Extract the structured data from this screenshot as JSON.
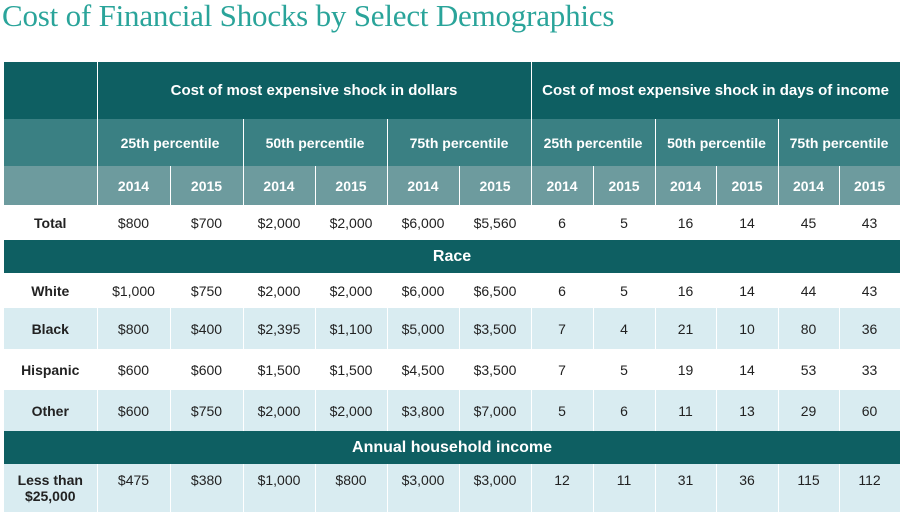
{
  "title": "Cost of Financial Shocks by Select Demographics",
  "chart_data": {
    "type": "table",
    "group_headers": [
      "Cost of most expensive shock in dollars",
      "Cost of most expensive shock in days of income"
    ],
    "percentiles": [
      "25th percentile",
      "50th percentile",
      "75th percentile",
      "25th percentile",
      "50th percentile",
      "75th percentile"
    ],
    "years": [
      "2014",
      "2015",
      "2014",
      "2015",
      "2014",
      "2015",
      "2014",
      "2015",
      "2014",
      "2015",
      "2014",
      "2015"
    ],
    "rows": [
      {
        "type": "data",
        "label": "Total",
        "values": [
          "$800",
          "$700",
          "$2,000",
          "$2,000",
          "$6,000",
          "$5,560",
          "6",
          "5",
          "16",
          "14",
          "45",
          "43"
        ]
      },
      {
        "type": "section",
        "label": "Race"
      },
      {
        "type": "data",
        "label": "White",
        "values": [
          "$1,000",
          "$750",
          "$2,000",
          "$2,000",
          "$6,000",
          "$6,500",
          "6",
          "5",
          "16",
          "14",
          "44",
          "43"
        ]
      },
      {
        "type": "data",
        "label": "Black",
        "values": [
          "$800",
          "$400",
          "$2,395",
          "$1,100",
          "$5,000",
          "$3,500",
          "7",
          "4",
          "21",
          "10",
          "80",
          "36"
        ]
      },
      {
        "type": "data",
        "label": "Hispanic",
        "values": [
          "$600",
          "$600",
          "$1,500",
          "$1,500",
          "$4,500",
          "$3,500",
          "7",
          "5",
          "19",
          "14",
          "53",
          "33"
        ]
      },
      {
        "type": "data",
        "label": "Other",
        "values": [
          "$600",
          "$750",
          "$2,000",
          "$2,000",
          "$3,800",
          "$7,000",
          "5",
          "6",
          "11",
          "13",
          "29",
          "60"
        ]
      },
      {
        "type": "section",
        "label": "Annual household income"
      },
      {
        "type": "data",
        "label": "Less than $25,000",
        "values": [
          "$475",
          "$380",
          "$1,000",
          "$800",
          "$3,000",
          "$3,000",
          "12",
          "11",
          "31",
          "36",
          "115",
          "112"
        ]
      }
    ]
  },
  "colors": {
    "title": "#2aa49a",
    "header_dark": "#0e5f62",
    "header_mid": "#3a8083",
    "header_light": "#6d9b9e",
    "row_blue": "#d9ecf1"
  }
}
